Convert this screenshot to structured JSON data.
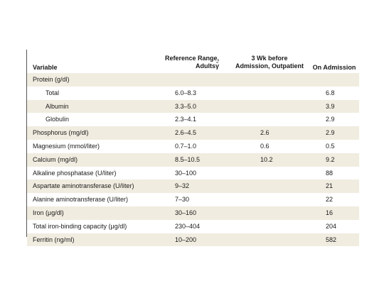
{
  "table": {
    "headers": {
      "variable": "Variable",
      "reference_line1": "Reference Range,",
      "reference_line2": "Adultsγ̃",
      "wk_line1": "3 Wk before",
      "wk_line2": "Admission, Outpatient",
      "admission": "On Admission"
    },
    "rows": [
      {
        "variable": "Protein (g/dl)",
        "reference": "",
        "wk_before": "",
        "admission": ""
      },
      {
        "variable": "Total",
        "reference": "6.0–8.3",
        "wk_before": "",
        "admission": "6.8"
      },
      {
        "variable": "Albumin",
        "reference": "3.3–5.0",
        "wk_before": "",
        "admission": "3.9"
      },
      {
        "variable": "Globulin",
        "reference": "2.3–4.1",
        "wk_before": "",
        "admission": "2.9"
      },
      {
        "variable": "Phosphorus (mg/dl)",
        "reference": "2.6–4.5",
        "wk_before": "2.6",
        "admission": "2.9"
      },
      {
        "variable": "Magnesium (mmol/liter)",
        "reference": "0.7–1.0",
        "wk_before": "0.6",
        "admission": "0.5"
      },
      {
        "variable": "Calcium (mg/dl)",
        "reference": "8.5–10.5",
        "wk_before": "10.2",
        "admission": "9.2"
      },
      {
        "variable": "Alkaline phosphatase (U/liter)",
        "reference": "30–100",
        "wk_before": "",
        "admission": "88"
      },
      {
        "variable": "Aspartate aminotransferase (U/liter)",
        "reference": "9–32",
        "wk_before": "",
        "admission": "21"
      },
      {
        "variable": "Alanine aminotransferase (U/liter)",
        "reference": "7–30",
        "wk_before": "",
        "admission": "22"
      },
      {
        "variable": "Iron (μg/dl)",
        "reference": "30–160",
        "wk_before": "",
        "admission": "16"
      },
      {
        "variable": "Total iron-binding capacity (μg/dl)",
        "reference": "230–404",
        "wk_before": "",
        "admission": "204"
      },
      {
        "variable": "Ferritin (ng/ml)",
        "reference": "10–200",
        "wk_before": "",
        "admission": "582"
      }
    ]
  },
  "colors": {
    "stripe": "#f1ece0",
    "rule": "#555555"
  }
}
